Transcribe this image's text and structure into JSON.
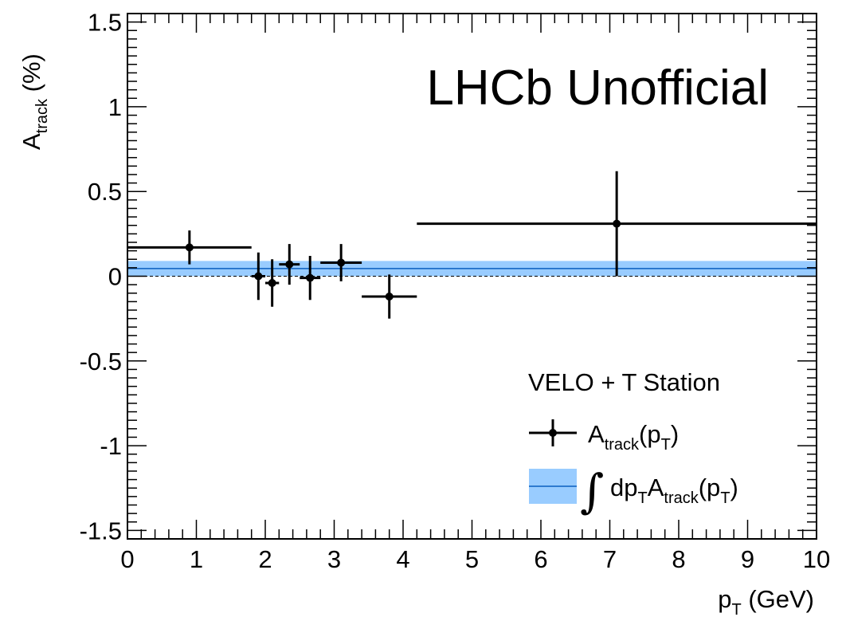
{
  "chart_data": {
    "type": "scatter",
    "title": "",
    "watermark": "LHCb Unofficial",
    "xlabel": {
      "main": "p",
      "sub": "T",
      "unit": " (GeV)"
    },
    "ylabel": {
      "main": "A",
      "sub": "track",
      "unit": " (%)"
    },
    "xlim": [
      0,
      10
    ],
    "ylim": [
      -1.55,
      1.55
    ],
    "x_ticks": [
      0,
      1,
      2,
      3,
      4,
      5,
      6,
      7,
      8,
      9,
      10
    ],
    "x_tick_labels": [
      "0",
      "1",
      "2",
      "3",
      "4",
      "5",
      "6",
      "7",
      "8",
      "9",
      "10"
    ],
    "y_ticks": [
      -1.5,
      -1,
      -0.5,
      0,
      0.5,
      1,
      1.5
    ],
    "y_tick_labels": [
      "-1.5",
      "-1",
      "-0.5",
      "0",
      "0.5",
      "1",
      "1.5"
    ],
    "grid": false,
    "legend_placement": "bottom-right",
    "legend_title": "VELO + T Station",
    "series": [
      {
        "name": "A_track(p_T)",
        "legend": {
          "main": "A",
          "sub1": "track",
          "mid": "(p",
          "sub2": "T",
          "end": ")"
        },
        "color": "#000000",
        "points": [
          {
            "x": 0.9,
            "xlo": 0.0,
            "xhi": 1.8,
            "y": 0.17,
            "yerr": 0.1
          },
          {
            "x": 1.9,
            "xlo": 1.8,
            "xhi": 2.0,
            "y": 0.0,
            "yerr": 0.14
          },
          {
            "x": 2.1,
            "xlo": 2.0,
            "xhi": 2.2,
            "y": -0.04,
            "yerr": 0.14
          },
          {
            "x": 2.35,
            "xlo": 2.2,
            "xhi": 2.5,
            "y": 0.07,
            "yerr": 0.12
          },
          {
            "x": 2.65,
            "xlo": 2.5,
            "xhi": 2.8,
            "y": -0.01,
            "yerr": 0.13
          },
          {
            "x": 3.1,
            "xlo": 2.8,
            "xhi": 3.4,
            "y": 0.08,
            "yerr": 0.11
          },
          {
            "x": 3.8,
            "xlo": 3.4,
            "xhi": 4.2,
            "y": -0.12,
            "yerr": 0.13
          },
          {
            "x": 7.1,
            "xlo": 4.2,
            "xhi": 10.0,
            "y": 0.31,
            "yerr": 0.31
          }
        ]
      },
      {
        "name": "∫dp_T A_track(p_T)",
        "legend": {
          "integral": "∫",
          "pre": "dp",
          "sub0": "T",
          "main": "A",
          "sub1": "track",
          "mid": "(p",
          "sub2": "T",
          "end": ")"
        },
        "type": "band",
        "central": 0.045,
        "err": 0.045,
        "fill_color": "#99ccff",
        "line_color": "#0b5fbf"
      }
    ]
  }
}
